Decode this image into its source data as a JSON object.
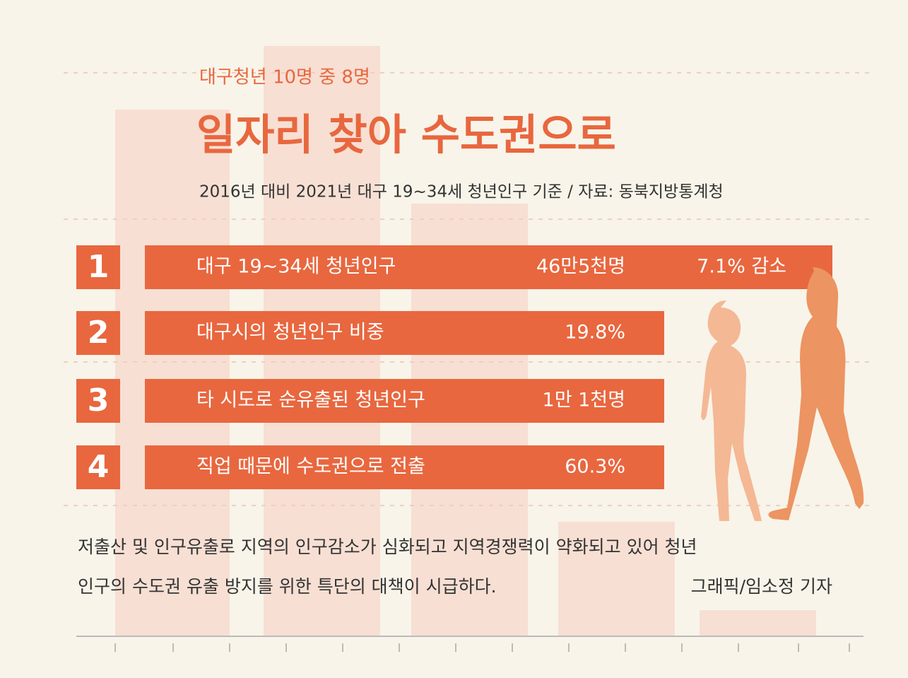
{
  "header": {
    "kicker": "대구청년 10명 중 8명",
    "title": "일자리 찾아 수도권으로",
    "subtitle": "2016년 대비 2021년 대구 19~34세 청년인구 기준 / 자료: 동북지방통계청"
  },
  "items": [
    {
      "number": "1",
      "label": "대구 19~34세 청년인구",
      "value": "46만5천명",
      "extra": "7.1% 감소"
    },
    {
      "number": "2",
      "label": "대구시의 청년인구 비중",
      "value": "19.8%"
    },
    {
      "number": "3",
      "label": "타 시도로 순유출된 청년인구",
      "value": "1만 1천명"
    },
    {
      "number": "4",
      "label": "직업 때문에 수도권으로 전출",
      "value": "60.3%"
    }
  ],
  "footer": {
    "lines": [
      "저출산 및 인구유출로 지역의 인구감소가 심화되고 지역경쟁력이 약화되고 있어  청년",
      "인구의 수도권 유출 방지를 위한 특단의 대책이 시급하다."
    ],
    "credit": "그래픽/임소정 기자"
  }
}
